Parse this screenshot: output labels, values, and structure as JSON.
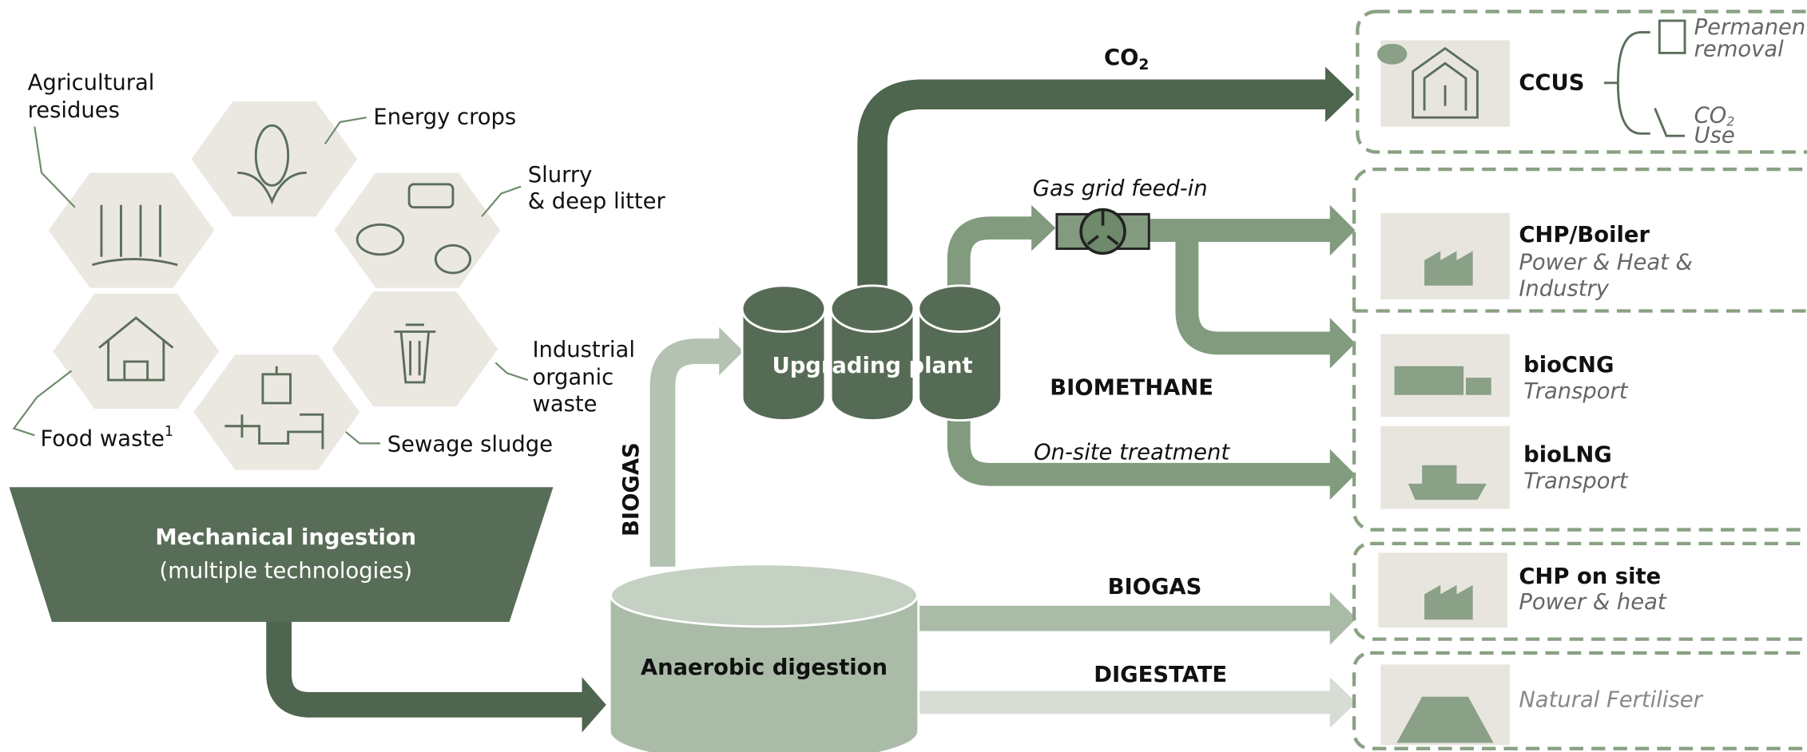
{
  "feedstocks": {
    "agricultural_residues": [
      "Agricultural",
      "residues"
    ],
    "energy_crops": "Energy crops",
    "slurry": [
      "Slurry",
      "& deep litter"
    ],
    "industrial": [
      "Industrial",
      "organic",
      "waste"
    ],
    "sewage": "Sewage sludge",
    "food_waste": {
      "text": "Food waste",
      "note": "1"
    }
  },
  "ingestion": {
    "title": "Mechanical ingestion",
    "subtitle": "(multiple technologies)"
  },
  "digestion": "Anaerobic digestion",
  "upgrading": "Upgrading plant",
  "flows": {
    "biogas_up": "BIOGAS",
    "co2": {
      "text": "CO",
      "sub": "2"
    },
    "gas_grid": "Gas grid feed-in",
    "biomethane": "BIOMETHANE",
    "on_site": "On-site treatment",
    "biogas": "BIOGAS",
    "digestate": "DIGESTATE"
  },
  "outputs": {
    "ccus": {
      "title": "CCUS",
      "permanent": [
        "Permanent",
        "removal"
      ],
      "use": {
        "text": "CO",
        "sub": "2",
        "line2": "Use"
      }
    },
    "chp_boiler": {
      "title": "CHP/Boiler",
      "lines": [
        "Power & Heat &",
        "Industry"
      ]
    },
    "biocng": {
      "title": "bioCNG",
      "subtitle": "Transport"
    },
    "biolng": {
      "title": "bioLNG",
      "subtitle": "Transport"
    },
    "chp_site": {
      "title": "CHP on site",
      "subtitle": "Power & heat"
    },
    "fertiliser": "Natural Fertiliser"
  }
}
